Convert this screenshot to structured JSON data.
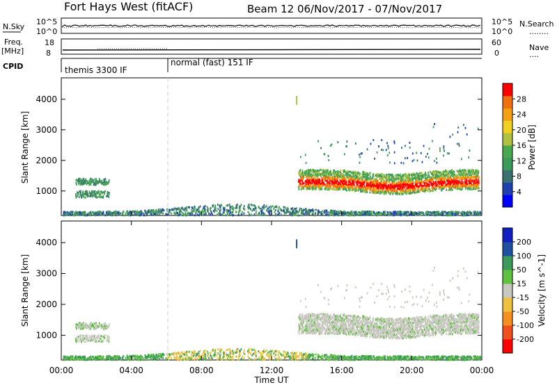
{
  "header": {
    "title": "Fort Hays West (fitACF)",
    "beam_and_dates": "Beam 12  06/Nov/2017 - 07/Nov/2017"
  },
  "noise_panel": {
    "left_label": "N.Sky",
    "left_ticks": [
      "10^5",
      "10^0"
    ],
    "right_ticks": [
      "10^5",
      "10^0"
    ],
    "right_label": "N.Search",
    "right_line": "........"
  },
  "freq_panel": {
    "left_label_line1": "Freq.",
    "left_label_line2": "[MHz]",
    "left_ticks": [
      "18",
      "8"
    ],
    "right_ticks": [
      "60",
      "0"
    ],
    "right_label": "Nave",
    "right_line": "...."
  },
  "cpid": {
    "label": "CPID",
    "segments": [
      {
        "label": "themis 3300 IF",
        "start_hour": 0
      },
      {
        "label": "normal (fast) 151 IF",
        "start_hour": 6
      }
    ]
  },
  "colors": {
    "noise_line": "#000000",
    "velocity_ground": "#c8c8c0"
  },
  "chart_data": [
    {
      "type": "heatmap",
      "panel": "power",
      "ylabel": "Slant Range [km]",
      "y_ticks": [
        1000,
        2000,
        3000,
        4000
      ],
      "ylim": [
        200,
        4700
      ],
      "x_ticks": [
        "00:00",
        "04:00",
        "08:00",
        "12:00",
        "16:00",
        "20:00",
        "00:00"
      ],
      "xlim_hours": [
        0,
        24
      ],
      "colorbar": {
        "label": "Power [dB]",
        "ticks": [
          "28",
          "24",
          "20",
          "16",
          "12",
          "8",
          "4"
        ],
        "range": [
          0,
          30
        ],
        "colors": [
          "#0000ff",
          "#2040b0",
          "#3a7070",
          "#3c9a5a",
          "#4aa850",
          "#b0c040",
          "#f0d020",
          "#f5a010",
          "#f07010",
          "#ff0000"
        ]
      },
      "echo_regions": [
        {
          "name": "ground scatter near range",
          "t0": 0.1,
          "t1": 23.9,
          "r0": 200,
          "r1": 550,
          "power": "4-16"
        },
        {
          "name": "early ionospheric echo",
          "t0": 0.8,
          "t1": 2.7,
          "r0": 750,
          "r1": 1450,
          "power": "8-16"
        },
        {
          "name": "night F-region echo",
          "t0": 13.5,
          "t1": 23.8,
          "r0": 1050,
          "r1": 1900,
          "power": "12-30"
        }
      ]
    },
    {
      "type": "heatmap",
      "panel": "velocity",
      "ylabel": "Slant Range [km]",
      "y_ticks": [
        1000,
        2000,
        3000,
        4000
      ],
      "ylim": [
        200,
        4700
      ],
      "x_ticks": [
        "00:00",
        "04:00",
        "08:00",
        "12:00",
        "16:00",
        "20:00",
        "00:00"
      ],
      "xlabel": "Time UT",
      "xlim_hours": [
        0,
        24
      ],
      "colorbar": {
        "label": "Velocity [m s^-1]",
        "ticks": [
          "200",
          "100",
          "50",
          "15",
          "-15",
          "-50",
          "-100",
          "-200"
        ],
        "range": [
          -250,
          250
        ],
        "colors": [
          "#ff0000",
          "#f05020",
          "#f59020",
          "#f0c040",
          "#c8c8c0",
          "#60c040",
          "#3c9a5a",
          "#2050a0",
          "#1020c0"
        ]
      }
    }
  ]
}
